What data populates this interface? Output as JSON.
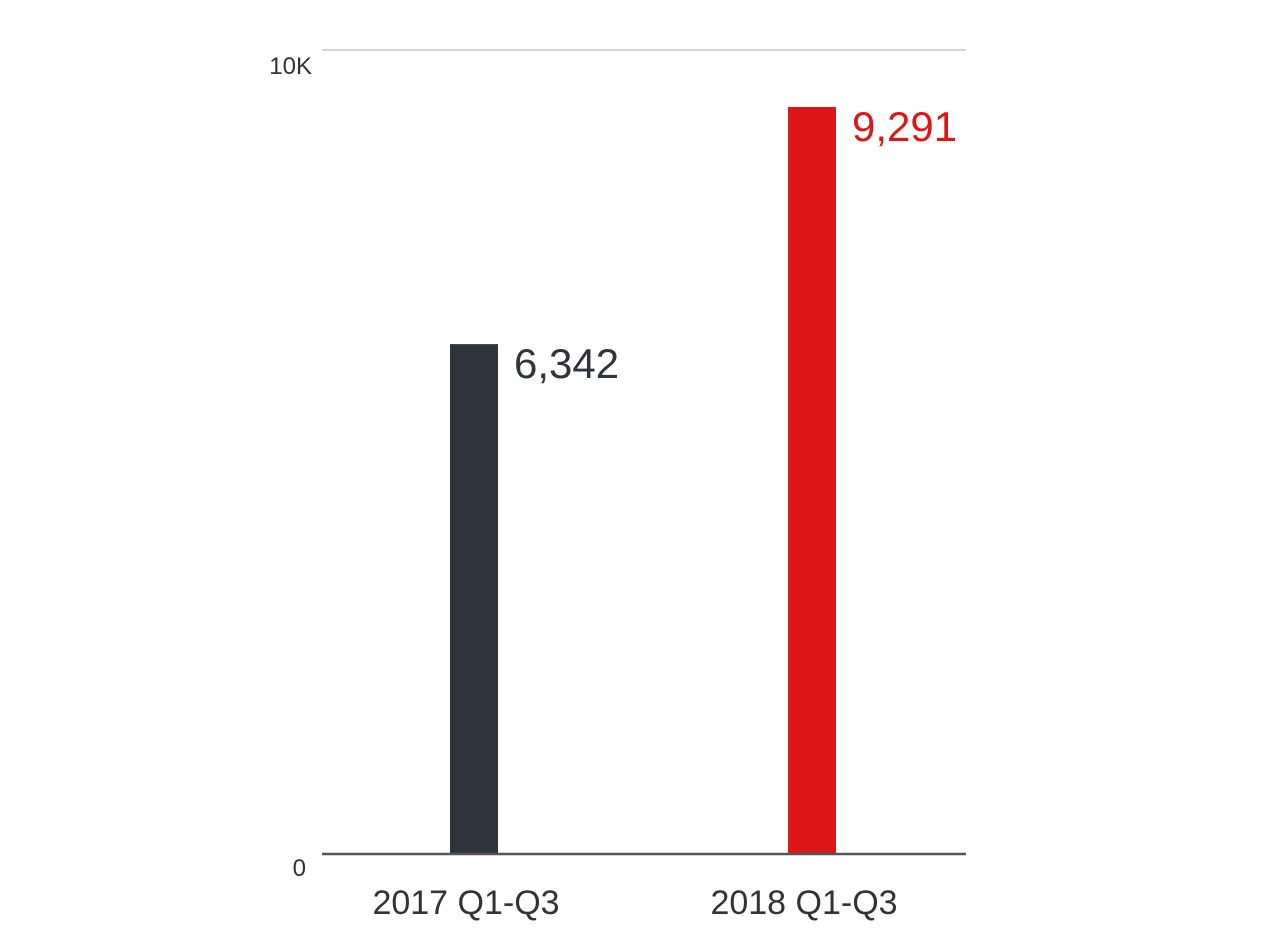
{
  "chart_data": {
    "type": "bar",
    "title": "",
    "xlabel": "",
    "ylabel": "",
    "categories": [
      "2017 Q1-Q3",
      "2018 Q1-Q3"
    ],
    "values": [
      6342,
      9291
    ],
    "value_labels": [
      "6,342",
      "9,291"
    ],
    "bar_colors": [
      "#30343b",
      "#dd1717"
    ],
    "value_label_colors": [
      "#30343b",
      "#dd1717"
    ],
    "ylim": [
      0,
      10000
    ],
    "yticks": [
      0,
      10000
    ],
    "ytick_labels": [
      "0",
      "10K"
    ],
    "grid": true
  }
}
